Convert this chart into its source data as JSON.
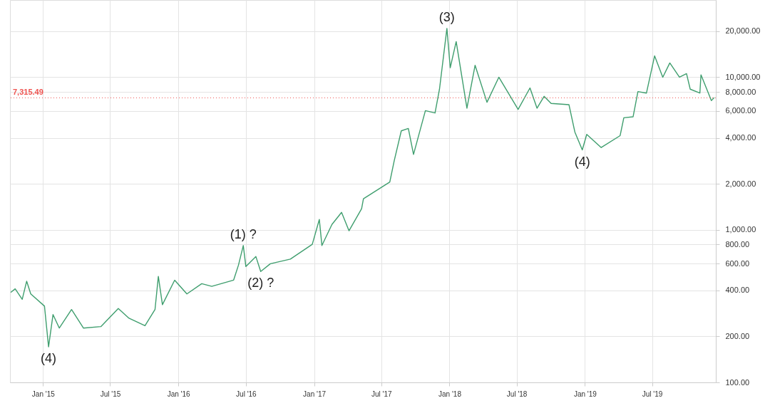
{
  "chart_data": {
    "type": "line",
    "log": true,
    "grid": true,
    "x": [
      "2014-10-07",
      "2014-10-18",
      "2014-11-06",
      "2014-11-18",
      "2014-11-29",
      "2015-01-05",
      "2015-01-16",
      "2015-01-28",
      "2015-02-14",
      "2015-03-19",
      "2015-04-20",
      "2015-06-06",
      "2015-07-23",
      "2015-08-21",
      "2015-10-03",
      "2015-10-30",
      "2015-11-08",
      "2015-11-19",
      "2015-12-22",
      "2016-01-24",
      "2016-03-04",
      "2016-03-31",
      "2016-05-29",
      "2016-06-11",
      "2016-06-24",
      "2016-07-01",
      "2016-07-28",
      "2016-08-10",
      "2016-09-05",
      "2016-10-29",
      "2016-12-27",
      "2017-01-15",
      "2017-01-22",
      "2017-02-18",
      "2017-03-16",
      "2017-04-05",
      "2017-05-09",
      "2017-05-14",
      "2017-07-24",
      "2017-08-05",
      "2017-08-24",
      "2017-09-12",
      "2017-09-26",
      "2017-10-28",
      "2017-11-23",
      "2017-12-05",
      "2017-12-25",
      "2018-01-03",
      "2018-01-19",
      "2018-02-17",
      "2018-03-11",
      "2018-04-12",
      "2018-05-14",
      "2018-07-05",
      "2018-08-06",
      "2018-08-25",
      "2018-09-13",
      "2018-10-02",
      "2018-11-19",
      "2018-12-05",
      "2018-12-25",
      "2019-01-06",
      "2019-02-14",
      "2019-04-06",
      "2019-04-16",
      "2019-05-11",
      "2019-05-24",
      "2019-06-16",
      "2019-07-08",
      "2019-07-30",
      "2019-08-18",
      "2019-09-13",
      "2019-10-02",
      "2019-10-12",
      "2019-11-07",
      "2019-11-10",
      "2019-12-08",
      "2019-12-15"
    ],
    "series": [
      {
        "color": "#3f9e6e",
        "values": [
          390,
          410,
          350,
          460,
          380,
          316,
          171,
          278,
          227,
          300,
          227,
          232,
          305,
          263,
          235,
          300,
          495,
          323,
          467,
          380,
          443,
          426,
          468,
          586,
          788,
          574,
          667,
          533,
          599,
          642,
          803,
          1168,
          788,
          1083,
          1300,
          985,
          1373,
          1596,
          2053,
          2836,
          4445,
          4606,
          3115,
          6030,
          5820,
          8335,
          20840,
          11520,
          17100,
          6255,
          11950,
          6840,
          9980,
          6140,
          8490,
          6255,
          7480,
          6720,
          6600,
          4366,
          3335,
          4213,
          3457,
          4136,
          5415,
          5500,
          8040,
          7860,
          13780,
          9980,
          12380,
          9980,
          10540,
          8335,
          7860,
          10350,
          7010,
          7315.49
        ]
      }
    ],
    "xlim": [
      "2014-10-04",
      "2019-12-20"
    ],
    "xticks": [
      {
        "value": "2015-01-01",
        "label": "Jan '15"
      },
      {
        "value": "2015-07-01",
        "label": "Jul '15"
      },
      {
        "value": "2016-01-01",
        "label": "Jan '16"
      },
      {
        "value": "2016-07-01",
        "label": "Jul '16"
      },
      {
        "value": "2017-01-01",
        "label": "Jan '17"
      },
      {
        "value": "2017-07-01",
        "label": "Jul '17"
      },
      {
        "value": "2018-01-01",
        "label": "Jan '18"
      },
      {
        "value": "2018-07-01",
        "label": "Jul '18"
      },
      {
        "value": "2019-01-01",
        "label": "Jan '19"
      },
      {
        "value": "2019-07-01",
        "label": "Jul '19"
      }
    ],
    "ylim": [
      100,
      32000
    ],
    "yticks": [
      {
        "value": 100,
        "label": "100.00"
      },
      {
        "value": 200,
        "label": "200.00"
      },
      {
        "value": 400,
        "label": "400.00"
      },
      {
        "value": 600,
        "label": "600.00"
      },
      {
        "value": 800,
        "label": "800.00"
      },
      {
        "value": 1000,
        "label": "1,000.00"
      },
      {
        "value": 2000,
        "label": "2,000.00"
      },
      {
        "value": 4000,
        "label": "4,000.00"
      },
      {
        "value": 6000,
        "label": "6,000.00"
      },
      {
        "value": 8000,
        "label": "8,000.00"
      },
      {
        "value": 10000,
        "label": "10,000.00"
      },
      {
        "value": 20000,
        "label": "20,000.00"
      }
    ],
    "ref_lines": [
      {
        "axis": "y",
        "value": 7315.49,
        "label": "7,315.49",
        "color": "#ef5350",
        "line_style": "dotted"
      }
    ],
    "annotations": [
      {
        "text": "(4)",
        "x": "2015-01-16",
        "y": 171
      },
      {
        "text": "(1) ?",
        "x": "2016-06-24",
        "y": 788
      },
      {
        "text": "(2) ?",
        "x": "2016-08-10",
        "y": 533
      },
      {
        "text": "(3)",
        "x": "2017-12-25",
        "y": 20840
      },
      {
        "text": "(4)",
        "x": "2018-12-25",
        "y": 3335
      }
    ]
  }
}
